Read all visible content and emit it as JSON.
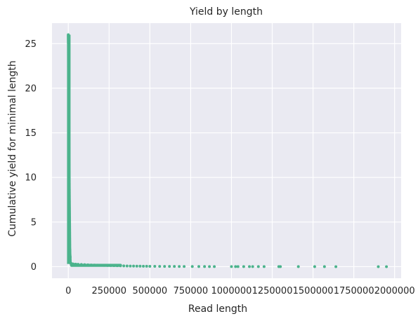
{
  "chart_data": {
    "type": "scatter",
    "title": "Yield by length",
    "xlabel": "Read length",
    "ylabel": "Cumulative yield for minimal length",
    "xlim": [
      -100000,
      2040000
    ],
    "ylim": [
      -1.3,
      27.3
    ],
    "x_ticks": [
      0,
      250000,
      500000,
      750000,
      1000000,
      1250000,
      1500000,
      1750000,
      2000000
    ],
    "x_tick_labels": [
      "0",
      "250000",
      "500000",
      "750000",
      "1000000",
      "1250000",
      "1500000",
      "1750000",
      "2000000"
    ],
    "y_ticks": [
      0,
      5,
      10,
      15,
      20,
      25
    ],
    "y_tick_labels": [
      "0",
      "5",
      "10",
      "15",
      "20",
      "25"
    ],
    "grid": true,
    "series": [
      {
        "color": "#4bb38c",
        "points": [
          [
            0,
            26.0
          ],
          [
            200,
            25.5
          ],
          [
            500,
            25.0
          ],
          [
            800,
            24.0
          ],
          [
            1000,
            23.0
          ],
          [
            1300,
            22.0
          ],
          [
            1600,
            21.0
          ],
          [
            2000,
            20.0
          ],
          [
            2300,
            19.0
          ],
          [
            2700,
            18.0
          ],
          [
            3100,
            17.0
          ],
          [
            3500,
            16.0
          ],
          [
            3900,
            15.0
          ],
          [
            4300,
            14.0
          ],
          [
            4700,
            13.0
          ],
          [
            5100,
            12.0
          ],
          [
            5500,
            11.0
          ],
          [
            5900,
            10.0
          ],
          [
            6300,
            9.0
          ],
          [
            6700,
            8.0
          ],
          [
            7100,
            7.0
          ],
          [
            7600,
            6.0
          ],
          [
            8100,
            5.0
          ],
          [
            8600,
            4.0
          ],
          [
            9100,
            3.0
          ],
          [
            9600,
            2.0
          ],
          [
            10000,
            1.5
          ],
          [
            10500,
            1.2
          ],
          [
            11000,
            1.0
          ],
          [
            12000,
            0.5
          ],
          [
            14000,
            0.4
          ],
          [
            17000,
            0.35
          ],
          [
            20000,
            0.33
          ],
          [
            30000,
            0.3
          ],
          [
            45000,
            0.28
          ],
          [
            60000,
            0.26
          ],
          [
            80000,
            0.24
          ],
          [
            100000,
            0.22
          ],
          [
            120000,
            0.2
          ],
          [
            140000,
            0.18
          ],
          [
            160000,
            0.17
          ],
          [
            180000,
            0.16
          ],
          [
            200000,
            0.15
          ],
          [
            220000,
            0.14
          ],
          [
            240000,
            0.13
          ],
          [
            260000,
            0.12
          ],
          [
            280000,
            0.11
          ],
          [
            300000,
            0.1
          ],
          [
            320000,
            0.09
          ],
          [
            340000,
            0.08
          ],
          [
            360000,
            0.075
          ],
          [
            380000,
            0.07
          ],
          [
            400000,
            0.065
          ],
          [
            420000,
            0.06
          ],
          [
            440000,
            0.055
          ],
          [
            460000,
            0.05
          ],
          [
            480000,
            0.045
          ],
          [
            500000,
            0.04
          ],
          [
            530000,
            0.035
          ],
          [
            560000,
            0.03
          ],
          [
            590000,
            0.028
          ],
          [
            620000,
            0.025
          ],
          [
            650000,
            0.022
          ],
          [
            680000,
            0.02
          ],
          [
            710000,
            0.018
          ],
          [
            760000,
            0.016
          ],
          [
            800000,
            0.014
          ],
          [
            835000,
            0.012
          ],
          [
            865000,
            0.011
          ],
          [
            895000,
            0.01
          ],
          [
            1000000,
            0.009
          ],
          [
            1025000,
            0.008
          ],
          [
            1040000,
            0.008
          ],
          [
            1075000,
            0.007
          ],
          [
            1110000,
            0.006
          ],
          [
            1130000,
            0.006
          ],
          [
            1165000,
            0.005
          ],
          [
            1200000,
            0.005
          ],
          [
            1290000,
            0.004
          ],
          [
            1300000,
            0.004
          ],
          [
            1410000,
            0.003
          ],
          [
            1510000,
            0.002
          ],
          [
            1570000,
            0.002
          ],
          [
            1640000,
            0.001
          ],
          [
            1900000,
            0.001
          ],
          [
            1950000,
            0.0
          ]
        ]
      }
    ]
  }
}
